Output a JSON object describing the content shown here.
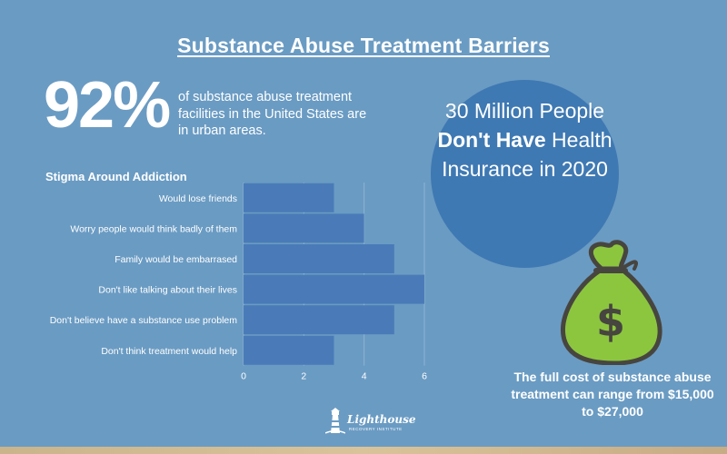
{
  "title": "Substance Abuse Treatment Barriers",
  "stat": {
    "value": "92%",
    "text": "of substance abuse treatment facilities in the United States are in urban areas."
  },
  "circle": {
    "part1": "30 Million People ",
    "bold1": "Don't",
    "part2": " ",
    "bold2": "Have",
    "part3": " Health Insurance in 2020"
  },
  "cost": {
    "text": "The full cost of substance abuse treatment can range from $15,000 to $27,000"
  },
  "bag_symbol": "$",
  "logo": {
    "name": "Lighthouse",
    "tagline": "RECOVERY INSTITUTE"
  },
  "colors": {
    "background": "#6a9bc3",
    "bar": "#4a7bb8",
    "circle": "#3f79b3",
    "bag": "#8cc63f"
  },
  "chart_data": {
    "type": "bar",
    "orientation": "horizontal",
    "title": "Stigma Around Addiction",
    "categories": [
      "Would lose friends",
      "Worry people would think badly of them",
      "Family would be embarrased",
      "Don't like talking about their lives",
      "Don't believe have a substance use problem",
      "Don't think treatment would help"
    ],
    "values": [
      3,
      4,
      5,
      6,
      5,
      3
    ],
    "xlim": [
      0,
      6
    ],
    "xticks": [
      0,
      2,
      4,
      6
    ],
    "grid": true
  }
}
